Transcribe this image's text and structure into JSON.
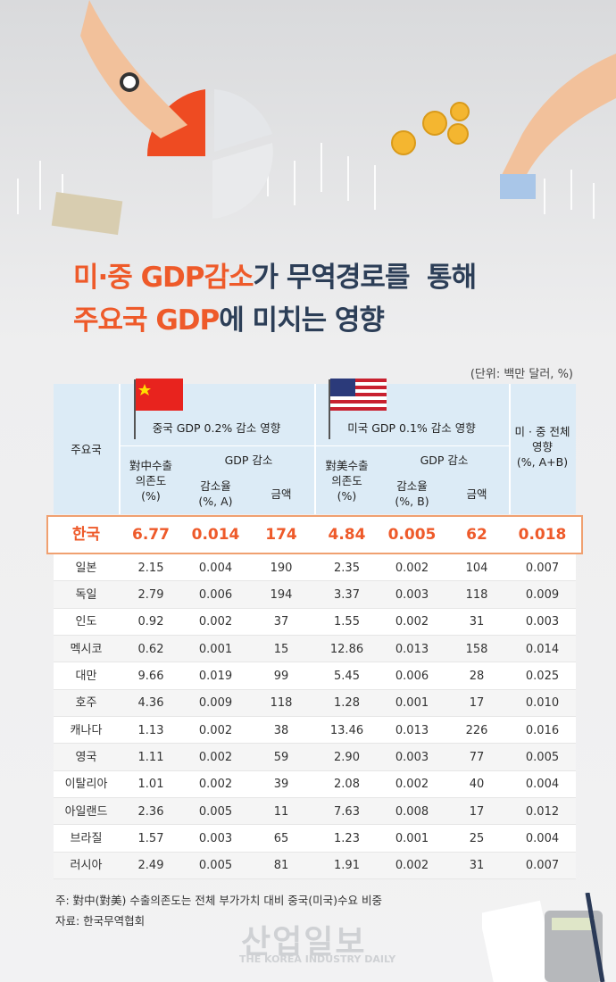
{
  "title": {
    "line1": [
      "미·중 GDP감소",
      "가 무역경로를  통해"
    ],
    "line2": [
      "주요국 GDP",
      "에 미치는 영향"
    ]
  },
  "unit": "(단위:  백만 달러, %)",
  "table": {
    "header": {
      "country": "주요국",
      "china_group": "중국 GDP 0.2% 감소 영향",
      "us_group": "미국 GDP 0.1% 감소 영향",
      "total": "미 · 중 전체\n영향\n(%, A+B)",
      "china_dep": "對中수출\n의존도\n(%)",
      "gdp_drop_a": "GDP 감소",
      "rate_a": "감소율\n(%, A)",
      "amount_a": "금액",
      "us_dep": "對美수출\n의존도\n(%)",
      "gdp_drop_b": "GDP 감소",
      "rate_b": "감소율\n(%, B)",
      "amount_b": "금액"
    },
    "rows": [
      [
        "한국",
        "6.77",
        "0.014",
        "174",
        "4.84",
        "0.005",
        "62",
        "0.018"
      ],
      [
        "일본",
        "2.15",
        "0.004",
        "190",
        "2.35",
        "0.002",
        "104",
        "0.007"
      ],
      [
        "독일",
        "2.79",
        "0.006",
        "194",
        "3.37",
        "0.003",
        "118",
        "0.009"
      ],
      [
        "인도",
        "0.92",
        "0.002",
        "37",
        "1.55",
        "0.002",
        "31",
        "0.003"
      ],
      [
        "멕시코",
        "0.62",
        "0.001",
        "15",
        "12.86",
        "0.013",
        "158",
        "0.014"
      ],
      [
        "대만",
        "9.66",
        "0.019",
        "99",
        "5.45",
        "0.006",
        "28",
        "0.025"
      ],
      [
        "호주",
        "4.36",
        "0.009",
        "118",
        "1.28",
        "0.001",
        "17",
        "0.010"
      ],
      [
        "캐나다",
        "1.13",
        "0.002",
        "38",
        "13.46",
        "0.013",
        "226",
        "0.016"
      ],
      [
        "영국",
        "1.11",
        "0.002",
        "59",
        "2.90",
        "0.003",
        "77",
        "0.005"
      ],
      [
        "이탈리아",
        "1.01",
        "0.002",
        "39",
        "2.08",
        "0.002",
        "40",
        "0.004"
      ],
      [
        "아일랜드",
        "2.36",
        "0.005",
        "11",
        "7.63",
        "0.008",
        "17",
        "0.012"
      ],
      [
        "브라질",
        "1.57",
        "0.003",
        "65",
        "1.23",
        "0.001",
        "25",
        "0.004"
      ],
      [
        "러시아",
        "2.49",
        "0.005",
        "81",
        "1.91",
        "0.002",
        "31",
        "0.007"
      ]
    ]
  },
  "notes": [
    "주: 對中(對美) 수출의존도는 전체 부가가치 대비 중국(미국)수요 비중",
    "자료: 한국무역협회"
  ],
  "watermark": {
    "name": "산업일보",
    "english": "THE KOREA INDUSTRY DAILY"
  }
}
